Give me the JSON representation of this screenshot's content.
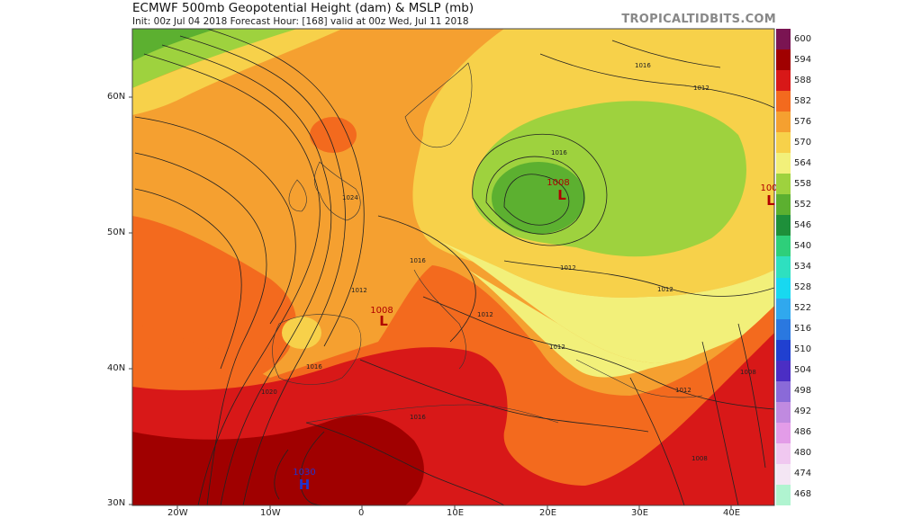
{
  "header": {
    "title": "ECMWF 500mb Geopotential Height (dam) & MSLP (mb)",
    "subtitle": "Init: 00z Jul 04 2018   Forecast Hour: [168]   valid at 00z Wed, Jul 11 2018",
    "brand": "TROPICALTIDBITS.COM"
  },
  "colorbar": {
    "levels": [
      "600",
      "594",
      "588",
      "582",
      "576",
      "570",
      "564",
      "558",
      "552",
      "546",
      "540",
      "534",
      "528",
      "522",
      "516",
      "510",
      "504",
      "498",
      "492",
      "486",
      "480",
      "474",
      "468"
    ],
    "colors": [
      "#7a1452",
      "#a00000",
      "#d81818",
      "#f36a1e",
      "#f5a030",
      "#f7d14a",
      "#f2f07a",
      "#9ed23e",
      "#5cb030",
      "#1e8f3a",
      "#2ecf7a",
      "#2ee0c0",
      "#18d8f0",
      "#30a8ee",
      "#2a78e0",
      "#2040d0",
      "#4b2ec4",
      "#8a6ad8",
      "#c08ae0",
      "#e39ce8",
      "#f0c8f0",
      "#f4e6f4",
      "#b0f4d0"
    ]
  },
  "axes": {
    "lat_labels": [
      "60N",
      "50N",
      "40N",
      "30N"
    ],
    "lon_labels": [
      "20W",
      "10W",
      "0",
      "10E",
      "20E",
      "30E",
      "40E"
    ]
  },
  "map": {
    "pressure_centers": [
      {
        "type": "L",
        "value": "1008",
        "color": "#b00000"
      },
      {
        "type": "L",
        "value": "1008",
        "color": "#b00000"
      },
      {
        "type": "L",
        "value": "100",
        "color": "#b00000"
      },
      {
        "type": "H",
        "value": "1030",
        "color": "#2233cc"
      }
    ],
    "isobar_labels": [
      "1024",
      "1016",
      "1012",
      "1016",
      "1020",
      "1012",
      "1016",
      "1012",
      "1012",
      "1016",
      "1012",
      "1008",
      "1012",
      "1008",
      "1016",
      "1012"
    ]
  }
}
